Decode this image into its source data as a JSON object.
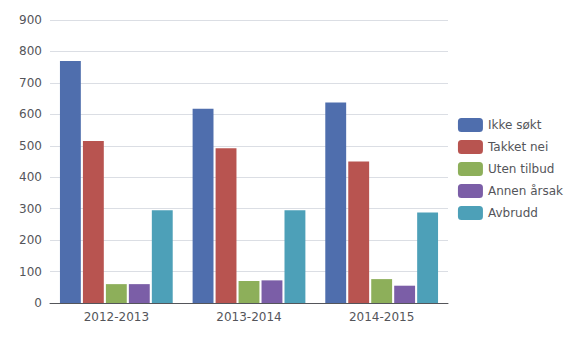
{
  "chart_data": {
    "type": "bar",
    "categories": [
      "2012-2013",
      "2013-2014",
      "2014-2015"
    ],
    "series": [
      {
        "name": "Ikke søkt",
        "color": "#4F6EAD",
        "values": [
          770,
          618,
          638
        ]
      },
      {
        "name": "Takket nei",
        "color": "#B85450",
        "values": [
          515,
          492,
          450
        ]
      },
      {
        "name": "Uten tilbud",
        "color": "#8DAF5A",
        "values": [
          60,
          70,
          76
        ]
      },
      {
        "name": "Annen årsak",
        "color": "#7B5EA7",
        "values": [
          60,
          72,
          55
        ]
      },
      {
        "name": "Avbrudd",
        "color": "#4DA0B8",
        "values": [
          295,
          295,
          288
        ]
      }
    ],
    "ylim": [
      0,
      900
    ],
    "yticks": [
      0,
      100,
      200,
      300,
      400,
      500,
      600,
      700,
      800,
      900
    ],
    "grid": true,
    "legend": "right"
  }
}
